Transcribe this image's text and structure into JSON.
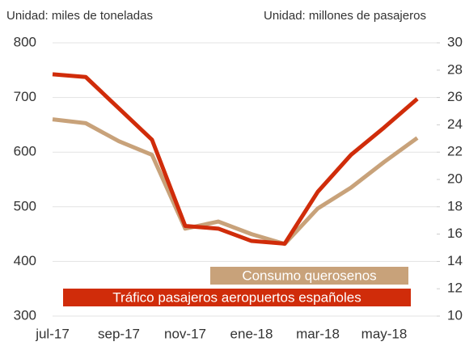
{
  "chart_data": {
    "type": "line",
    "y_label": "Unidad: miles de toneladas",
    "y2_label": "Unidad: millones de pasajeros",
    "categories": [
      "jul-17",
      null,
      "sep-17",
      null,
      "nov-17",
      null,
      "ene-18",
      null,
      "mar-18",
      null,
      "may-18",
      null
    ],
    "series": [
      {
        "name": "Consumo querosenos",
        "color": "#c8a27a",
        "values": [
          660,
          653,
          620,
          595,
          460,
          473,
          450,
          432,
          497,
          535,
          582,
          626
        ]
      },
      {
        "name": "Tráfico pasajeros aeropuertos españoles",
        "color": "#d02c0a",
        "axis": "y2",
        "values": [
          27.7,
          27.5,
          25.2,
          22.9,
          16.6,
          16.4,
          15.5,
          15.3,
          19.1,
          21.8,
          23.8,
          25.9
        ]
      }
    ],
    "ylim": [
      300,
      800
    ],
    "yticks": [
      300,
      400,
      500,
      600,
      700,
      800
    ],
    "y2lim": [
      10,
      30
    ],
    "y2ticks": [
      10,
      12,
      14,
      16,
      18,
      20,
      22,
      24,
      26,
      28,
      30
    ],
    "grid": true,
    "legend": "lower right"
  }
}
